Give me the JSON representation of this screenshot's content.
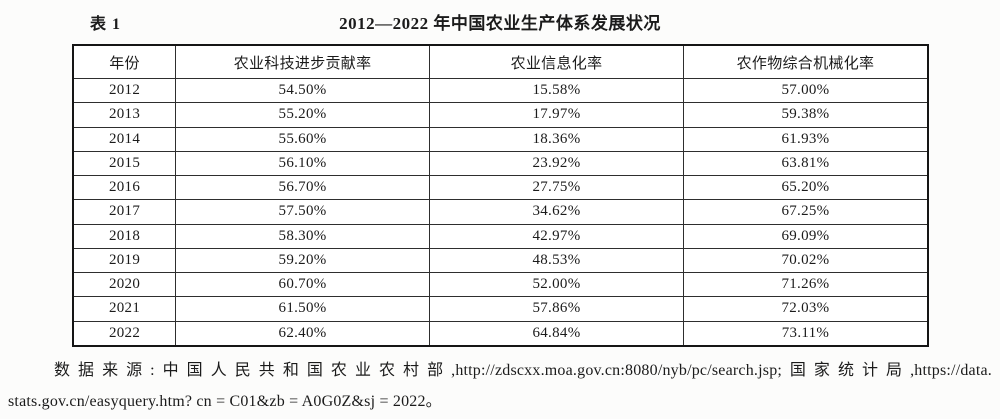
{
  "page": {
    "table_label": "表 1",
    "title": "2012—2022 年中国农业生产体系发展状况"
  },
  "table": {
    "columns": [
      "年份",
      "农业科技进步贡献率",
      "农业信息化率",
      "农作物综合机械化率"
    ],
    "rows": [
      [
        "2012",
        "54.50%",
        "15.58%",
        "57.00%"
      ],
      [
        "2013",
        "55.20%",
        "17.97%",
        "59.38%"
      ],
      [
        "2014",
        "55.60%",
        "18.36%",
        "61.93%"
      ],
      [
        "2015",
        "56.10%",
        "23.92%",
        "63.81%"
      ],
      [
        "2016",
        "56.70%",
        "27.75%",
        "65.20%"
      ],
      [
        "2017",
        "57.50%",
        "34.62%",
        "67.25%"
      ],
      [
        "2018",
        "58.30%",
        "42.97%",
        "69.09%"
      ],
      [
        "2019",
        "59.20%",
        "48.53%",
        "70.02%"
      ],
      [
        "2020",
        "60.70%",
        "52.00%",
        "71.26%"
      ],
      [
        "2021",
        "61.50%",
        "57.86%",
        "72.03%"
      ],
      [
        "2022",
        "62.40%",
        "64.84%",
        "73.11%"
      ]
    ]
  },
  "footer": {
    "line1": "数据来源:中国人民共和国农业农村部,http://zdscxx.moa.gov.cn:8080/nyb/pc/search.jsp;国家统计局,https://data.",
    "line2": "stats.gov.cn/easyquery.htm? cn = C01&zb = A0G0Z&sj = 2022。"
  }
}
